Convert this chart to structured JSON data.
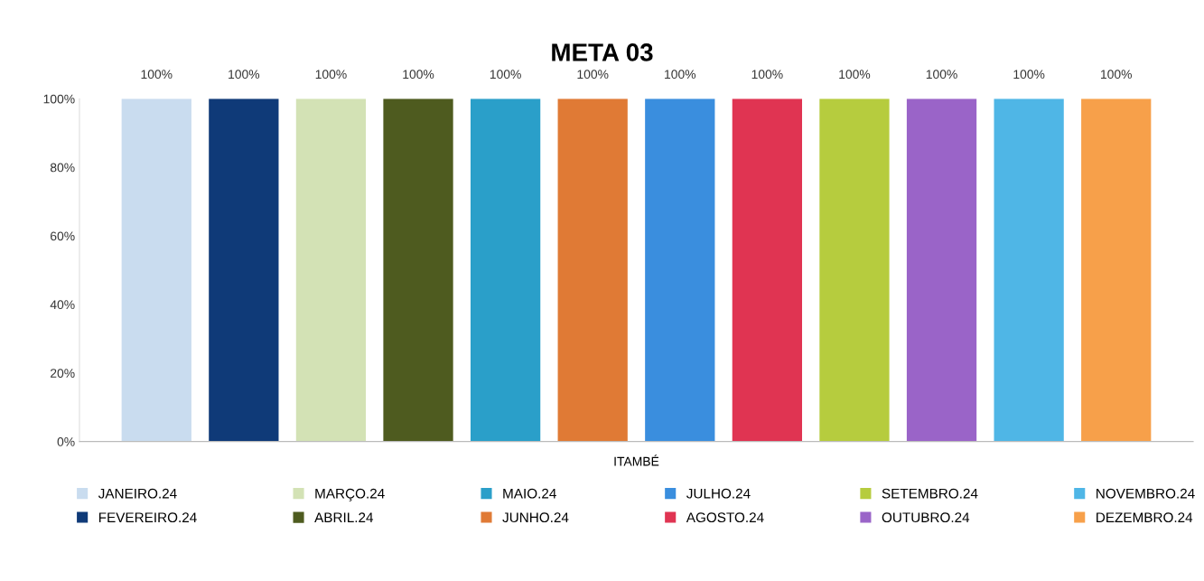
{
  "chart_data": {
    "type": "bar",
    "title": "META 03",
    "categories": [
      "ITAMBÉ"
    ],
    "ylim": [
      0,
      100
    ],
    "yticks": [
      {
        "value": 0,
        "label": "0%"
      },
      {
        "value": 20,
        "label": "20%"
      },
      {
        "value": 40,
        "label": "40%"
      },
      {
        "value": 60,
        "label": "60%"
      },
      {
        "value": 80,
        "label": "80%"
      },
      {
        "value": 100,
        "label": "100%"
      }
    ],
    "grid": false,
    "legend": "bottom",
    "series": [
      {
        "name": "JANEIRO.24",
        "color": "#c9dcef",
        "values": [
          100
        ],
        "value_labels": [
          "100%"
        ]
      },
      {
        "name": "FEVEREIRO.24",
        "color": "#0f3a78",
        "values": [
          100
        ],
        "value_labels": [
          "100%"
        ]
      },
      {
        "name": "MARÇO.24",
        "color": "#d3e2b5",
        "values": [
          100
        ],
        "value_labels": [
          "100%"
        ]
      },
      {
        "name": "ABRIL.24",
        "color": "#4e5b1f",
        "values": [
          100
        ],
        "value_labels": [
          "100%"
        ]
      },
      {
        "name": "MAIO.24",
        "color": "#2a9fc9",
        "values": [
          100
        ],
        "value_labels": [
          "100%"
        ]
      },
      {
        "name": "JUNHO.24",
        "color": "#e07a35",
        "values": [
          100
        ],
        "value_labels": [
          "100%"
        ]
      },
      {
        "name": "JULHO.24",
        "color": "#3a8ede",
        "values": [
          100
        ],
        "value_labels": [
          "100%"
        ]
      },
      {
        "name": "AGOSTO.24",
        "color": "#e03452",
        "values": [
          100
        ],
        "value_labels": [
          "100%"
        ]
      },
      {
        "name": "SETEMBRO.24",
        "color": "#b6cc3e",
        "values": [
          100
        ],
        "value_labels": [
          "100%"
        ]
      },
      {
        "name": "OUTUBRO.24",
        "color": "#9a64c8",
        "values": [
          100
        ],
        "value_labels": [
          "100%"
        ]
      },
      {
        "name": "NOVEMBRO.24",
        "color": "#4fb6e6",
        "values": [
          100
        ],
        "value_labels": [
          "100%"
        ]
      },
      {
        "name": "DEZEMBRO.24",
        "color": "#f7a04a",
        "values": [
          100
        ],
        "value_labels": [
          "100%"
        ]
      }
    ]
  }
}
